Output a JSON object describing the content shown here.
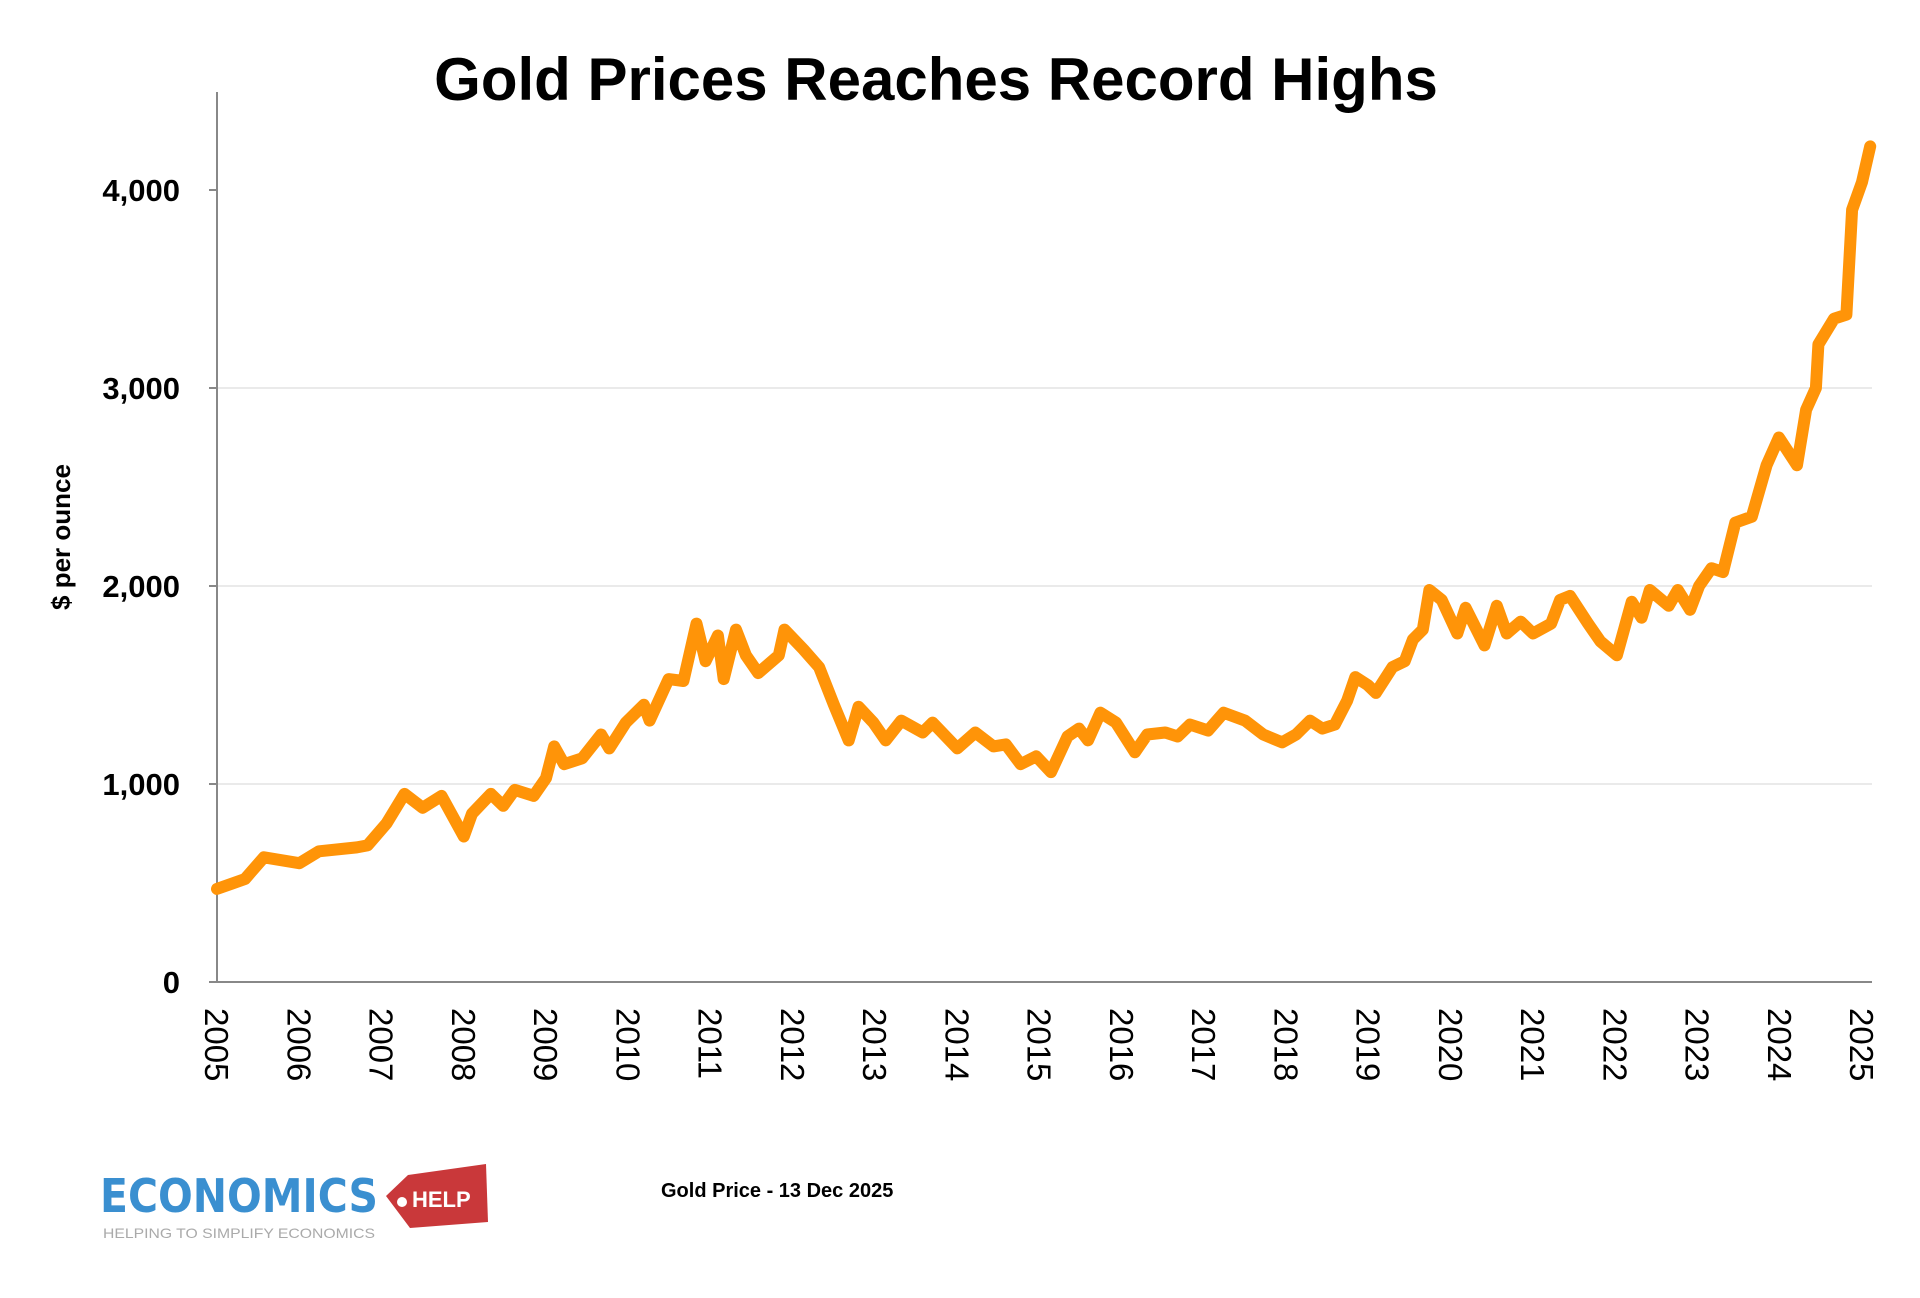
{
  "chart_data": {
    "type": "line",
    "title": "Gold Prices Reaches Record Highs",
    "xlabel": "",
    "ylabel": "$ per ounce",
    "ylim": [
      0,
      4500
    ],
    "xlim": [
      2005,
      2025.15
    ],
    "yticks": [
      0,
      1000,
      2000,
      3000,
      4000
    ],
    "ytick_labels": [
      "0",
      "1,000",
      "2,000",
      "3,000",
      "4,000"
    ],
    "xtick_labels": [
      "2005",
      "2006",
      "2007",
      "2008",
      "2009",
      "2010",
      "2011",
      "2012",
      "2013",
      "2014",
      "2015",
      "2016",
      "2017",
      "2018",
      "2019",
      "2020",
      "2021",
      "2022",
      "2023",
      "2024",
      "2025"
    ],
    "grid": "horizontal",
    "line_color": "#FF9408",
    "series": [
      {
        "x": [
          2005.0,
          2005.34,
          2005.57,
          2006.0,
          2006.24,
          2006.7,
          2006.83,
          2007.06,
          2007.28,
          2007.5,
          2007.73,
          2008.0,
          2008.1,
          2008.33,
          2008.48,
          2008.62,
          2008.85,
          2009.0,
          2009.1,
          2009.22,
          2009.44,
          2009.67,
          2009.77,
          2009.97,
          2010.19,
          2010.26,
          2010.49,
          2010.67,
          2010.83,
          2010.94,
          2011.09,
          2011.16,
          2011.31,
          2011.43,
          2011.58,
          2011.83,
          2011.9,
          2012.13,
          2012.32,
          2012.5,
          2012.68,
          2012.8,
          2012.98,
          2013.13,
          2013.32,
          2013.58,
          2013.7,
          2014.0,
          2014.22,
          2014.44,
          2014.59,
          2014.77,
          2014.96,
          2015.14,
          2015.34,
          2015.48,
          2015.59,
          2015.74,
          2015.93,
          2016.16,
          2016.31,
          2016.53,
          2016.68,
          2016.83,
          2017.05,
          2017.24,
          2017.5,
          2017.72,
          2017.95,
          2018.12,
          2018.29,
          2018.44,
          2018.59,
          2018.74,
          2018.84,
          2018.99,
          2019.09,
          2019.29,
          2019.44,
          2019.54,
          2019.66,
          2019.74,
          2019.89,
          2020.08,
          2020.18,
          2020.41,
          2020.56,
          2020.68,
          2020.85,
          2021.0,
          2021.22,
          2021.33,
          2021.45,
          2021.67,
          2021.82,
          2022.02,
          2022.2,
          2022.32,
          2022.42,
          2022.65,
          2022.76,
          2022.91,
          2023.02,
          2023.17,
          2023.31,
          2023.46,
          2023.66,
          2023.84,
          2023.99,
          2024.21,
          2024.32,
          2024.44,
          2024.47,
          2024.66,
          2024.81,
          2024.88,
          2025.0,
          2025.1
        ],
        "values": [
          470,
          520,
          630,
          600,
          660,
          680,
          690,
          800,
          950,
          880,
          940,
          735,
          850,
          950,
          890,
          970,
          940,
          1030,
          1190,
          1100,
          1130,
          1250,
          1180,
          1310,
          1400,
          1320,
          1530,
          1520,
          1810,
          1620,
          1750,
          1530,
          1780,
          1650,
          1560,
          1650,
          1780,
          1680,
          1590,
          1400,
          1220,
          1390,
          1310,
          1220,
          1320,
          1260,
          1310,
          1180,
          1260,
          1190,
          1200,
          1100,
          1140,
          1060,
          1240,
          1280,
          1220,
          1360,
          1310,
          1160,
          1250,
          1260,
          1240,
          1300,
          1270,
          1360,
          1320,
          1250,
          1210,
          1250,
          1320,
          1280,
          1300,
          1420,
          1540,
          1500,
          1460,
          1590,
          1620,
          1730,
          1780,
          1980,
          1930,
          1760,
          1890,
          1700,
          1900,
          1760,
          1820,
          1760,
          1810,
          1930,
          1950,
          1810,
          1720,
          1650,
          1920,
          1840,
          1980,
          1900,
          1980,
          1880,
          2000,
          2090,
          2070,
          2320,
          2350,
          2610,
          2750,
          2610,
          2890,
          3000,
          3220,
          3350,
          3370,
          3900,
          4040,
          4220
        ]
      }
    ]
  },
  "footnote": "Gold Price - 13 Dec 2025",
  "logo": {
    "main": "ECONOMICS",
    "tag": "HELP",
    "tagline": "HELPING TO SIMPLIFY ECONOMICS",
    "blue": "#3A8FD0",
    "red": "#C9383A"
  }
}
